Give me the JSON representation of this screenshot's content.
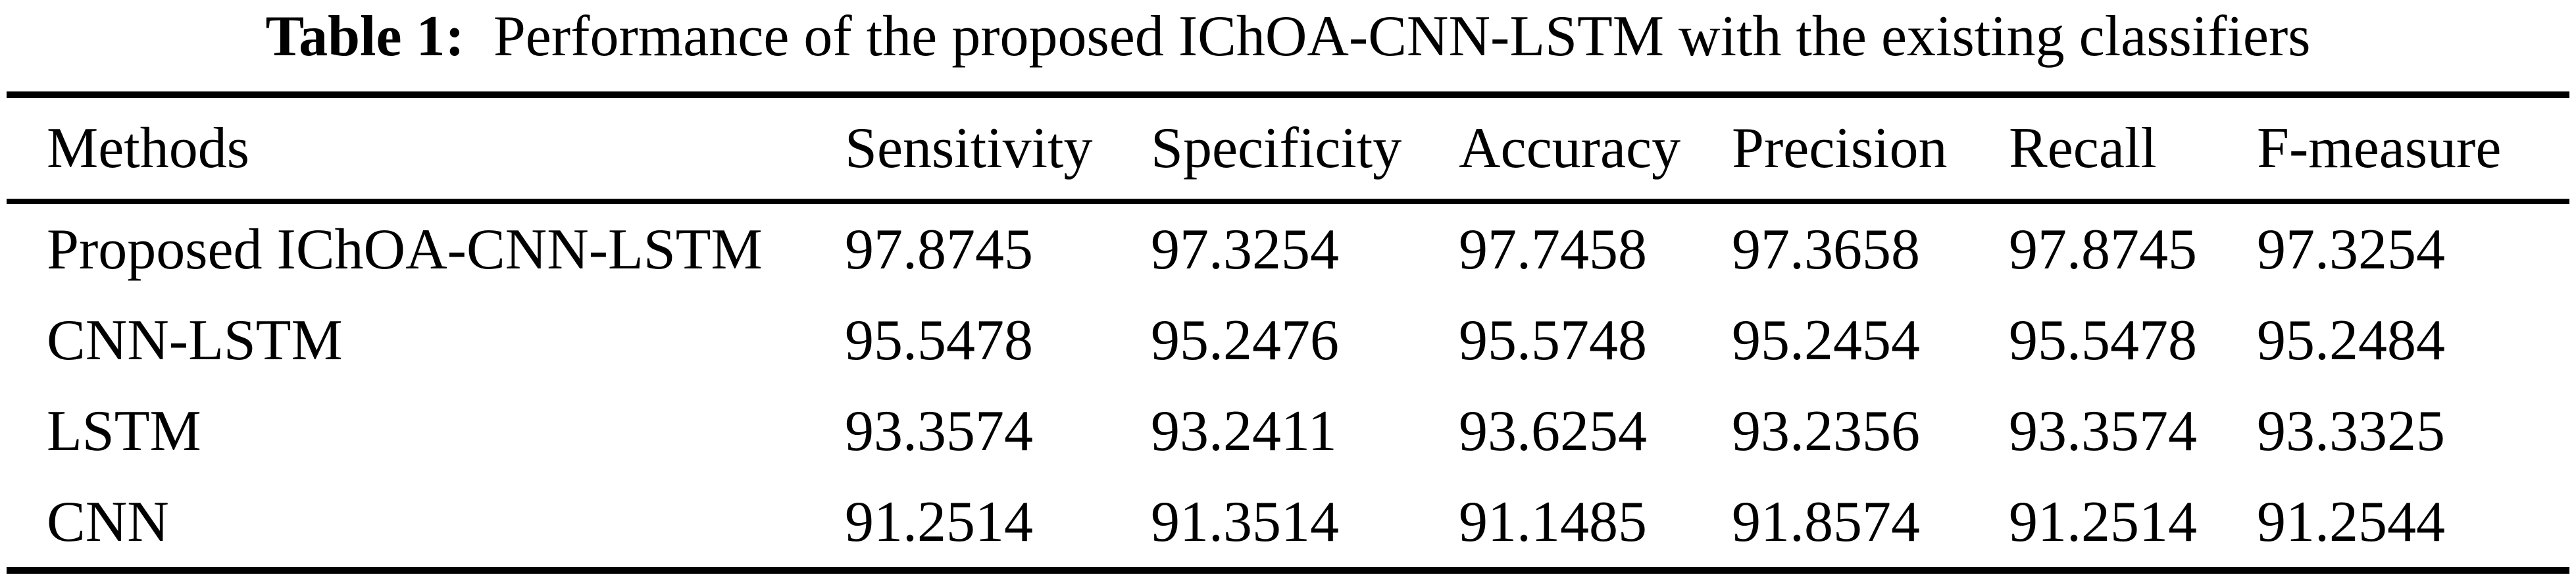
{
  "title": {
    "label": "Table 1:",
    "text": "Performance of the proposed IChOA-CNN-LSTM with the existing classifiers"
  },
  "table": {
    "columns": [
      "Methods",
      "Sensitivity",
      "Specificity",
      "Accuracy",
      "Precision",
      "Recall",
      "F-measure"
    ],
    "rows": [
      {
        "method": "Proposed IChOA-CNN-LSTM",
        "values": [
          "97.8745",
          "97.3254",
          "97.7458",
          "97.3658",
          "97.8745",
          "97.3254"
        ]
      },
      {
        "method": "CNN-LSTM",
        "values": [
          "95.5478",
          "95.2476",
          "95.5748",
          "95.2454",
          "95.5478",
          "95.2484"
        ]
      },
      {
        "method": "LSTM",
        "values": [
          "93.3574",
          "93.2411",
          "93.6254",
          "93.2356",
          "93.3574",
          "93.3325"
        ]
      },
      {
        "method": "CNN",
        "values": [
          "91.2514",
          "91.3514",
          "91.1485",
          "91.8574",
          "91.2514",
          "91.2544"
        ]
      }
    ],
    "colors": {
      "text": "#000000",
      "background": "#ffffff",
      "rule": "#000000"
    }
  }
}
